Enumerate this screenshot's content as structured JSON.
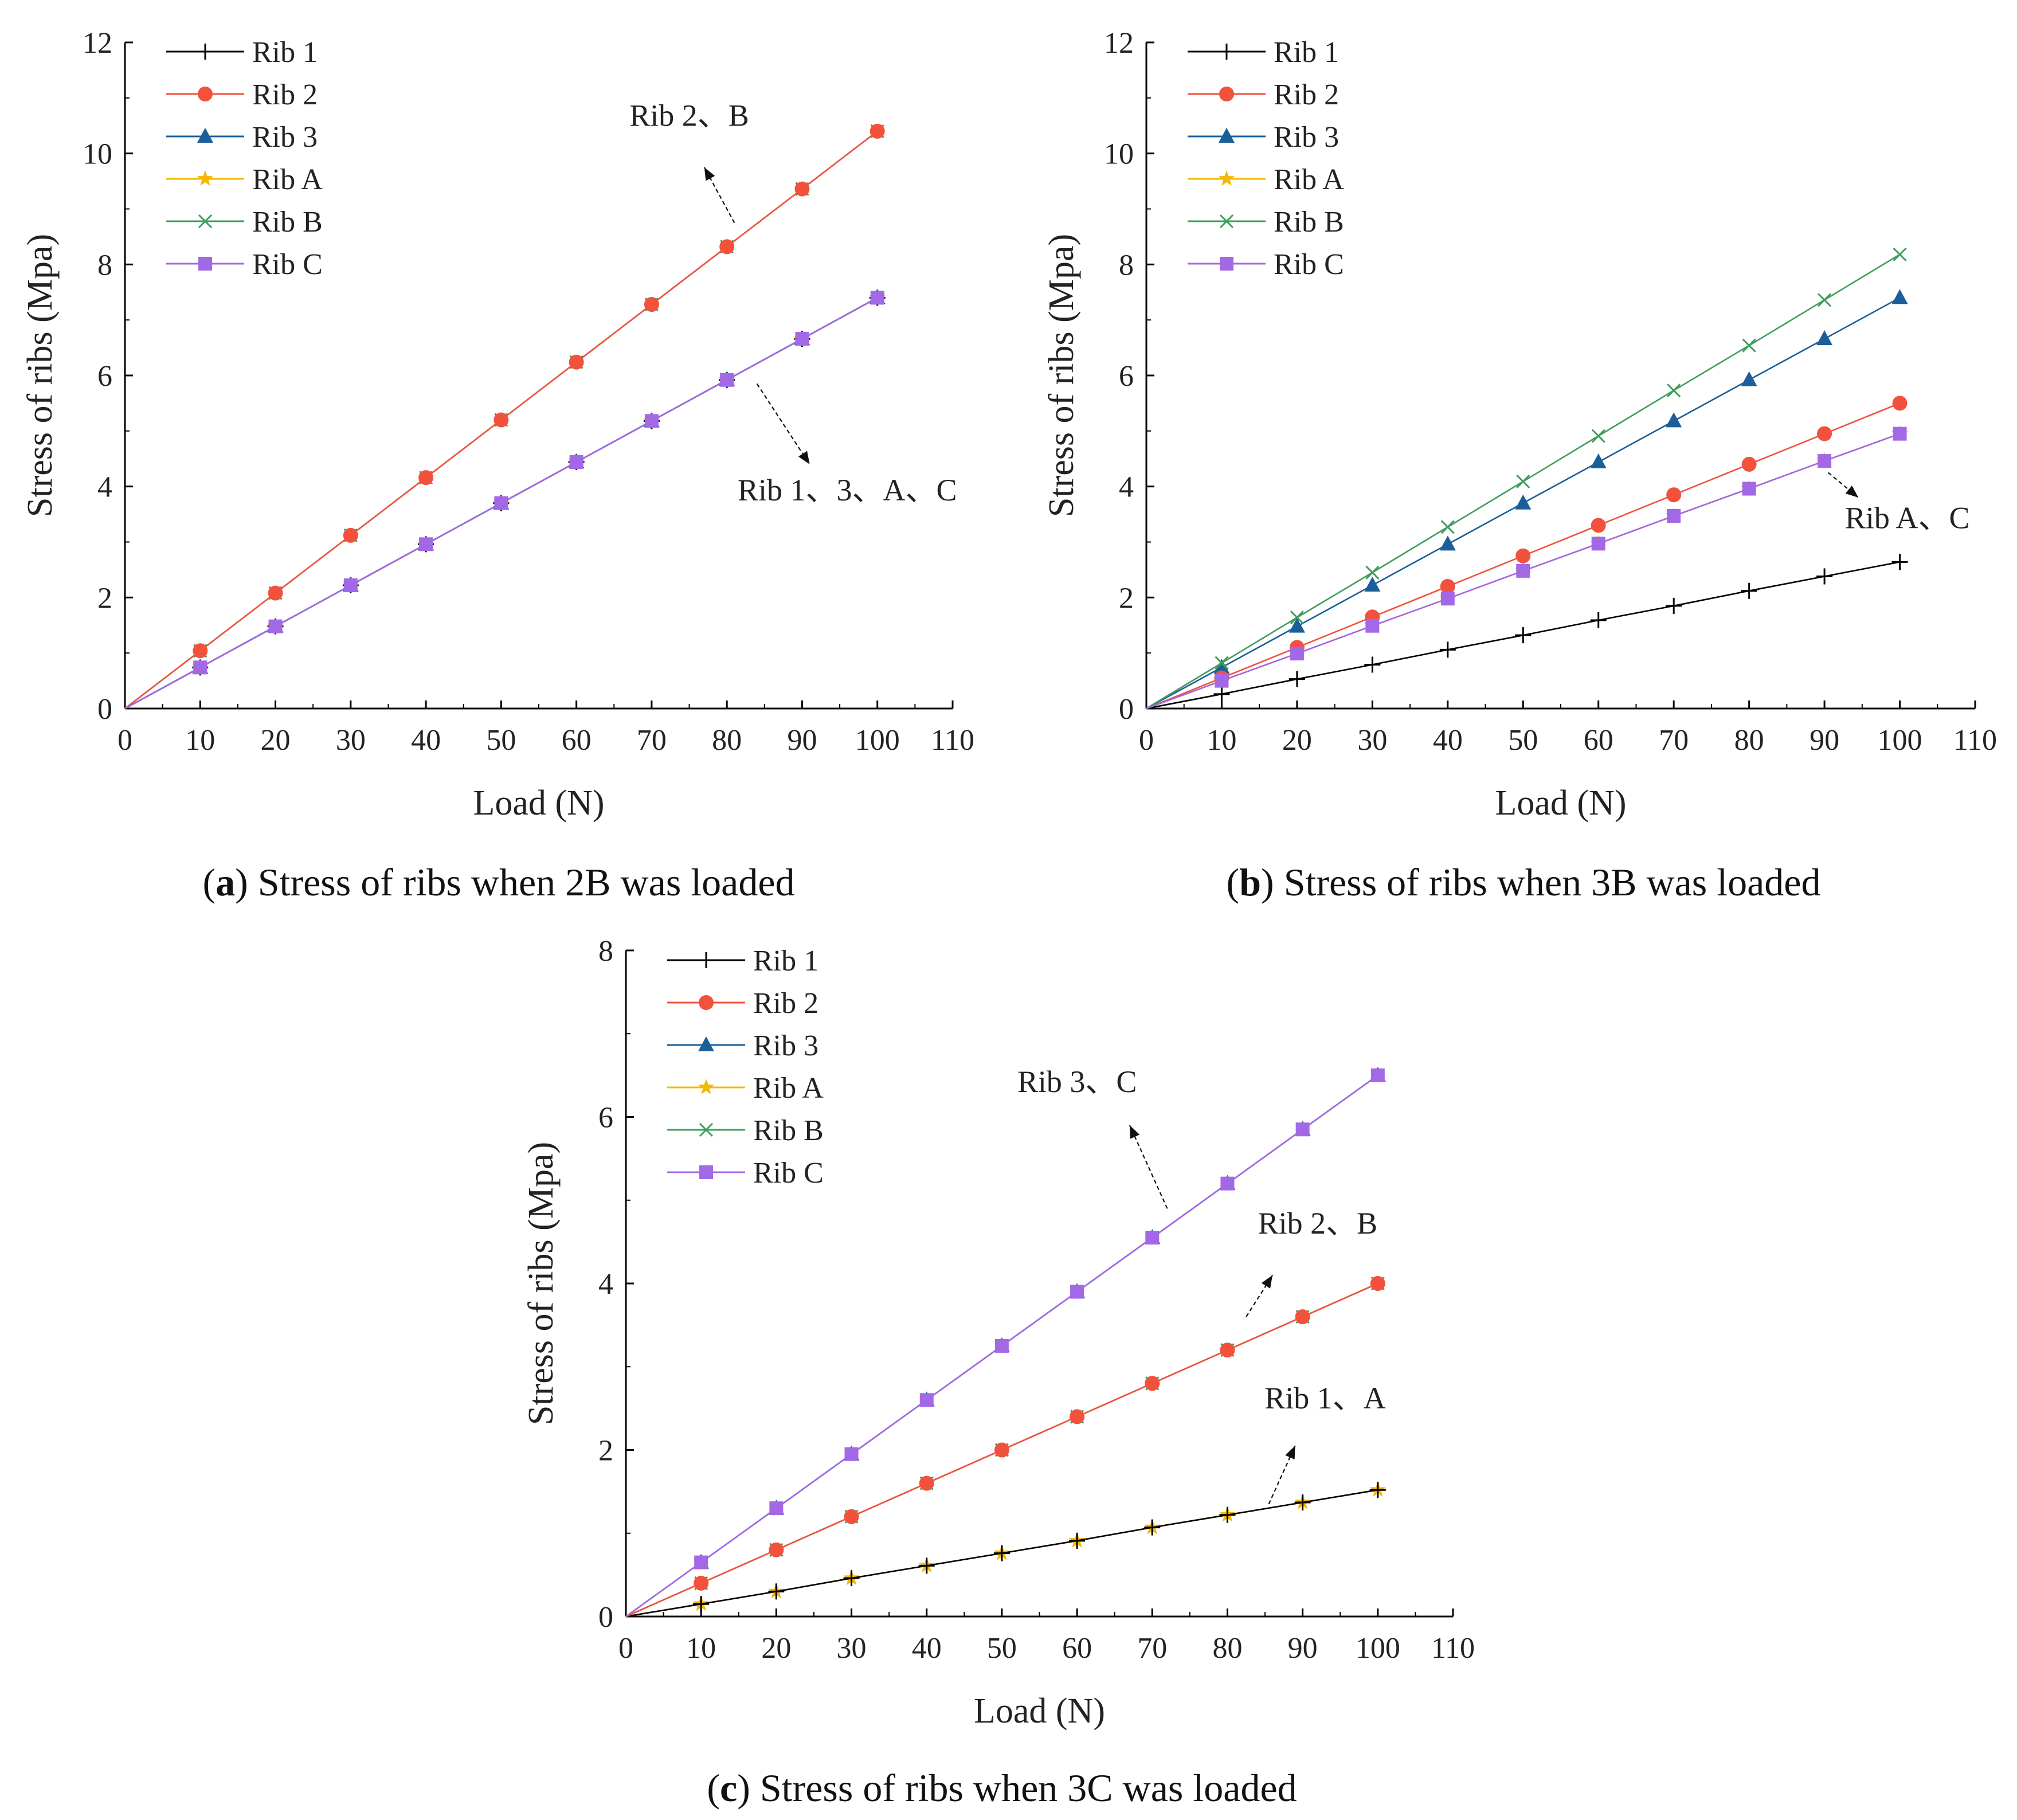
{
  "colors": {
    "Rib 1": "#000000",
    "Rib 2": "#f2513c",
    "Rib 3": "#1a5f99",
    "Rib A": "#f5b800",
    "Rib B": "#3f9d5c",
    "Rib C": "#a368e6"
  },
  "chart_data": [
    {
      "type": "line",
      "panel_letter": "a",
      "caption": "Stress of ribs when 2B was loaded",
      "xlabel": "Load (N)",
      "ylabel": "Stress of  ribs  (Mpa)",
      "xlim": [
        0,
        110
      ],
      "ylim": [
        0,
        12
      ],
      "xticks": [
        0,
        10,
        20,
        30,
        40,
        50,
        60,
        70,
        80,
        90,
        100,
        110
      ],
      "yticks": [
        0,
        2,
        4,
        6,
        8,
        10,
        12
      ],
      "x": [
        0,
        10,
        20,
        30,
        40,
        50,
        60,
        70,
        80,
        90,
        100
      ],
      "legend": [
        "Rib 1",
        "Rib 2",
        "Rib 3",
        "Rib A",
        "Rib B",
        "Rib C"
      ],
      "series": [
        {
          "name": "Rib 1",
          "marker": "plus",
          "values": [
            0,
            0.74,
            1.48,
            2.22,
            2.96,
            3.7,
            4.44,
            5.18,
            5.92,
            6.66,
            7.4
          ]
        },
        {
          "name": "Rib 2",
          "marker": "circle",
          "values": [
            0,
            1.04,
            2.08,
            3.12,
            4.16,
            5.2,
            6.24,
            7.28,
            8.32,
            9.36,
            10.4
          ]
        },
        {
          "name": "Rib 3",
          "marker": "triangle",
          "values": [
            0,
            0.74,
            1.48,
            2.22,
            2.96,
            3.7,
            4.44,
            5.18,
            5.92,
            6.66,
            7.4
          ]
        },
        {
          "name": "Rib A",
          "marker": "star",
          "values": [
            0,
            0.74,
            1.48,
            2.22,
            2.96,
            3.7,
            4.44,
            5.18,
            5.92,
            6.66,
            7.4
          ]
        },
        {
          "name": "Rib B",
          "marker": "x",
          "values": [
            0,
            1.04,
            2.08,
            3.12,
            4.16,
            5.2,
            6.24,
            7.28,
            8.32,
            9.36,
            10.4
          ]
        },
        {
          "name": "Rib C",
          "marker": "square",
          "values": [
            0,
            0.74,
            1.48,
            2.22,
            2.96,
            3.7,
            4.44,
            5.18,
            5.92,
            6.66,
            7.4
          ]
        }
      ],
      "annotations": [
        {
          "text": "Rib 2、B",
          "at": [
            75,
            10.5
          ],
          "arrow_from": [
            81,
            8.75
          ],
          "arrow_to": [
            77,
            9.75
          ]
        },
        {
          "text": "Rib 1、3、A、C",
          "at": [
            96,
            3.75
          ],
          "arrow_from": [
            84,
            5.85
          ],
          "arrow_to": [
            91,
            4.4
          ]
        }
      ]
    },
    {
      "type": "line",
      "panel_letter": "b",
      "caption": "Stress of ribs when 3B was loaded",
      "xlabel": "Load (N)",
      "ylabel": "Stress of  ribs  (Mpa)",
      "xlim": [
        0,
        110
      ],
      "ylim": [
        0,
        12
      ],
      "xticks": [
        0,
        10,
        20,
        30,
        40,
        50,
        60,
        70,
        80,
        90,
        100,
        110
      ],
      "yticks": [
        0,
        2,
        4,
        6,
        8,
        10,
        12
      ],
      "x": [
        0,
        10,
        20,
        30,
        40,
        50,
        60,
        70,
        80,
        90,
        100
      ],
      "legend": [
        "Rib 1",
        "Rib 2",
        "Rib 3",
        "Rib A",
        "Rib B",
        "Rib C"
      ],
      "series": [
        {
          "name": "Rib 1",
          "marker": "plus",
          "values": [
            0,
            0.26,
            0.53,
            0.79,
            1.06,
            1.32,
            1.59,
            1.85,
            2.12,
            2.38,
            2.64
          ]
        },
        {
          "name": "Rib 2",
          "marker": "circle",
          "values": [
            0,
            0.55,
            1.1,
            1.65,
            2.2,
            2.75,
            3.3,
            3.85,
            4.4,
            4.95,
            5.5
          ]
        },
        {
          "name": "Rib 3",
          "marker": "triangle",
          "values": [
            0,
            0.74,
            1.48,
            2.22,
            2.96,
            3.7,
            4.44,
            5.18,
            5.92,
            6.66,
            7.4
          ]
        },
        {
          "name": "Rib A",
          "marker": "star",
          "values": [
            0,
            0.5,
            0.99,
            1.49,
            1.98,
            2.48,
            2.97,
            3.47,
            3.96,
            4.46,
            4.95
          ]
        },
        {
          "name": "Rib B",
          "marker": "x",
          "values": [
            0,
            0.82,
            1.64,
            2.45,
            3.27,
            4.09,
            4.91,
            5.73,
            6.54,
            7.36,
            8.18
          ]
        },
        {
          "name": "Rib C",
          "marker": "square",
          "values": [
            0,
            0.5,
            0.99,
            1.49,
            1.98,
            2.48,
            2.97,
            3.47,
            3.96,
            4.46,
            4.95
          ]
        }
      ],
      "annotations": [
        {
          "text": "Rib A、C",
          "at": [
            101,
            3.25
          ],
          "arrow_from": [
            90.5,
            4.25
          ],
          "arrow_to": [
            94.5,
            3.8
          ]
        }
      ]
    },
    {
      "type": "line",
      "panel_letter": "c",
      "caption": "Stress of ribs when 3C was loaded",
      "xlabel": "Load (N)",
      "ylabel": "Stress of  ribs  (Mpa)",
      "xlim": [
        0,
        110
      ],
      "ylim": [
        0,
        8
      ],
      "xticks": [
        0,
        10,
        20,
        30,
        40,
        50,
        60,
        70,
        80,
        90,
        100,
        110
      ],
      "yticks": [
        0,
        2,
        4,
        6,
        8
      ],
      "x": [
        0,
        10,
        20,
        30,
        40,
        50,
        60,
        70,
        80,
        90,
        100
      ],
      "legend": [
        "Rib 1",
        "Rib 2",
        "Rib 3",
        "Rib A",
        "Rib B",
        "Rib C"
      ],
      "series": [
        {
          "name": "Rib 1",
          "marker": "plus",
          "values": [
            0,
            0.15,
            0.3,
            0.46,
            0.61,
            0.76,
            0.91,
            1.07,
            1.22,
            1.37,
            1.52
          ]
        },
        {
          "name": "Rib 2",
          "marker": "circle",
          "values": [
            0,
            0.4,
            0.8,
            1.2,
            1.6,
            2.0,
            2.4,
            2.8,
            3.2,
            3.6,
            4.0
          ]
        },
        {
          "name": "Rib 3",
          "marker": "triangle",
          "values": [
            0,
            0.65,
            1.3,
            1.95,
            2.6,
            3.25,
            3.9,
            4.55,
            5.2,
            5.85,
            6.5
          ]
        },
        {
          "name": "Rib A",
          "marker": "star",
          "values": [
            0,
            0.15,
            0.3,
            0.46,
            0.61,
            0.76,
            0.91,
            1.07,
            1.22,
            1.37,
            1.52
          ]
        },
        {
          "name": "Rib B",
          "marker": "x",
          "values": [
            0,
            0.4,
            0.8,
            1.2,
            1.6,
            2.0,
            2.4,
            2.8,
            3.2,
            3.6,
            4.0
          ]
        },
        {
          "name": "Rib C",
          "marker": "square",
          "values": [
            0,
            0.65,
            1.3,
            1.95,
            2.6,
            3.25,
            3.9,
            4.55,
            5.2,
            5.85,
            6.5
          ]
        }
      ],
      "annotations": [
        {
          "text": "Rib 3、C",
          "at": [
            60,
            6.3
          ],
          "arrow_from": [
            72,
            4.9
          ],
          "arrow_to": [
            67,
            5.9
          ]
        },
        {
          "text": "Rib 2、B",
          "at": [
            92,
            4.6
          ],
          "arrow_from": [
            82.5,
            3.6
          ],
          "arrow_to": [
            86,
            4.1
          ]
        },
        {
          "text": "Rib 1、A",
          "at": [
            93,
            2.5
          ],
          "arrow_from": [
            85.5,
            1.35
          ],
          "arrow_to": [
            89,
            2.05
          ]
        }
      ]
    }
  ]
}
